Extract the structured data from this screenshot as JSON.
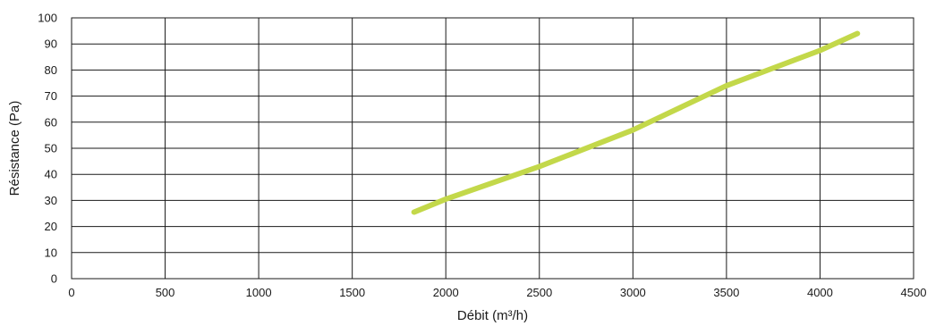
{
  "chart_data": {
    "type": "line",
    "xlabel": "Débit (m³/h)",
    "ylabel": "Résistance (Pa)",
    "xlim": [
      0,
      4500
    ],
    "ylim": [
      0,
      100
    ],
    "x_ticks": [
      "0",
      "500",
      "1000",
      "1500",
      "2000",
      "2500",
      "3000",
      "3500",
      "4000",
      "4500"
    ],
    "y_ticks": [
      "0",
      "10",
      "20",
      "30",
      "40",
      "50",
      "60",
      "70",
      "80",
      "90",
      "100"
    ],
    "grid": true,
    "series": [
      {
        "color": "#c3d84a",
        "points": [
          [
            1830,
            25.5
          ],
          [
            2000,
            30.5
          ],
          [
            2500,
            43
          ],
          [
            3000,
            57
          ],
          [
            3500,
            74
          ],
          [
            4000,
            87.5
          ],
          [
            4200,
            94
          ]
        ]
      }
    ]
  }
}
